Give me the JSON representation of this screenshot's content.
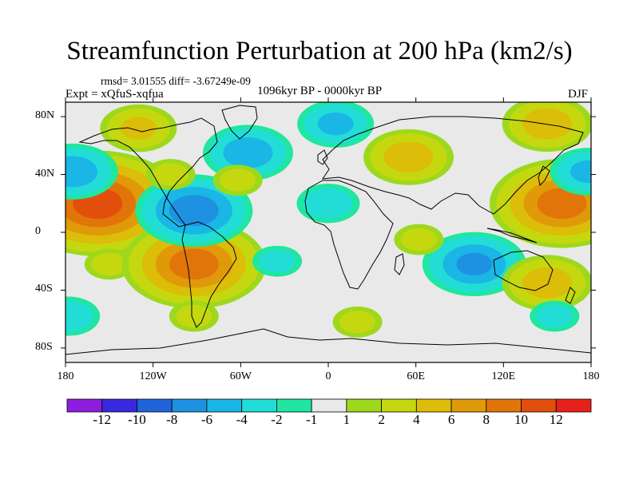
{
  "figure": {
    "title": "Streamfunction Perturbation at 200 hPa (km2/s)",
    "stats": "rmsd= 3.01555 diff= -3.67249e-09",
    "experiment": "Expt = xQfuS-xqfua",
    "period": "1096kyr BP - 0000kyr BP",
    "season": "DJF"
  },
  "map": {
    "projection": "cylindrical-equidistant",
    "lon_range": [
      -180,
      180
    ],
    "lat_range": [
      -90,
      90
    ],
    "x_ticks": [
      {
        "label": "180",
        "lon": -180
      },
      {
        "label": "120W",
        "lon": -120
      },
      {
        "label": "60W",
        "lon": -60
      },
      {
        "label": "0",
        "lon": 0
      },
      {
        "label": "60E",
        "lon": 60
      },
      {
        "label": "120E",
        "lon": 120
      },
      {
        "label": "180",
        "lon": 180
      }
    ],
    "y_ticks": [
      {
        "label": "80N",
        "lat": 80
      },
      {
        "label": "40N",
        "lat": 40
      },
      {
        "label": "0",
        "lat": 0
      },
      {
        "label": "40S",
        "lat": -40
      },
      {
        "label": "80S",
        "lat": -80
      }
    ],
    "field_anomalies": [
      {
        "lon": -158,
        "lat": 20,
        "value": 11
      },
      {
        "lon": -175,
        "lat": 42,
        "value": -5
      },
      {
        "lon": -150,
        "lat": -22,
        "value": 2
      },
      {
        "lon": -92,
        "lat": -22,
        "value": 9
      },
      {
        "lon": -92,
        "lat": 15,
        "value": -7
      },
      {
        "lon": -55,
        "lat": 55,
        "value": -5
      },
      {
        "lon": -130,
        "lat": 72,
        "value": 4
      },
      {
        "lon": -108,
        "lat": 40,
        "value": 2
      },
      {
        "lon": -62,
        "lat": 36,
        "value": 2
      },
      {
        "lon": 5,
        "lat": 75,
        "value": -4
      },
      {
        "lon": 55,
        "lat": 52,
        "value": 5
      },
      {
        "lon": 0,
        "lat": 20,
        "value": -3
      },
      {
        "lon": 160,
        "lat": 20,
        "value": 9
      },
      {
        "lon": 178,
        "lat": 42,
        "value": -4
      },
      {
        "lon": 150,
        "lat": 75,
        "value": 5
      },
      {
        "lon": 100,
        "lat": -22,
        "value": -6
      },
      {
        "lon": 62,
        "lat": -5,
        "value": 2
      },
      {
        "lon": -35,
        "lat": -20,
        "value": -2
      },
      {
        "lon": 150,
        "lat": -35,
        "value": 5
      },
      {
        "lon": 155,
        "lat": -58,
        "value": -2
      },
      {
        "lon": -92,
        "lat": -58,
        "value": 2
      },
      {
        "lon": -178,
        "lat": -58,
        "value": -3
      },
      {
        "lon": 20,
        "lat": -62,
        "value": 2
      }
    ]
  },
  "colorbar": {
    "colors": [
      "#8d1ee0",
      "#3a28de",
      "#1f64d8",
      "#1e91e0",
      "#1ab6e6",
      "#22ddd6",
      "#1fe6a0",
      "#e9e9e9",
      "#9ed81d",
      "#c5d80f",
      "#dcbd09",
      "#e09a09",
      "#e27509",
      "#e24f0c",
      "#e8201a"
    ],
    "labels": [
      {
        "text": "-12",
        "after_box": 1
      },
      {
        "text": "-10",
        "after_box": 2
      },
      {
        "text": "-8",
        "after_box": 3
      },
      {
        "text": "-6",
        "after_box": 4
      },
      {
        "text": "-4",
        "after_box": 5
      },
      {
        "text": "-2",
        "after_box": 6
      },
      {
        "text": "-1",
        "after_box": 7
      },
      {
        "text": "1",
        "after_box": 8
      },
      {
        "text": "2",
        "after_box": 9
      },
      {
        "text": "4",
        "after_box": 10
      },
      {
        "text": "6",
        "after_box": 11
      },
      {
        "text": "8",
        "after_box": 12
      },
      {
        "text": "10",
        "after_box": 13
      },
      {
        "text": "12",
        "after_box": 14
      }
    ],
    "levels": [
      -12,
      -10,
      -8,
      -6,
      -4,
      -2,
      -1,
      1,
      2,
      4,
      6,
      8,
      10,
      12
    ]
  }
}
